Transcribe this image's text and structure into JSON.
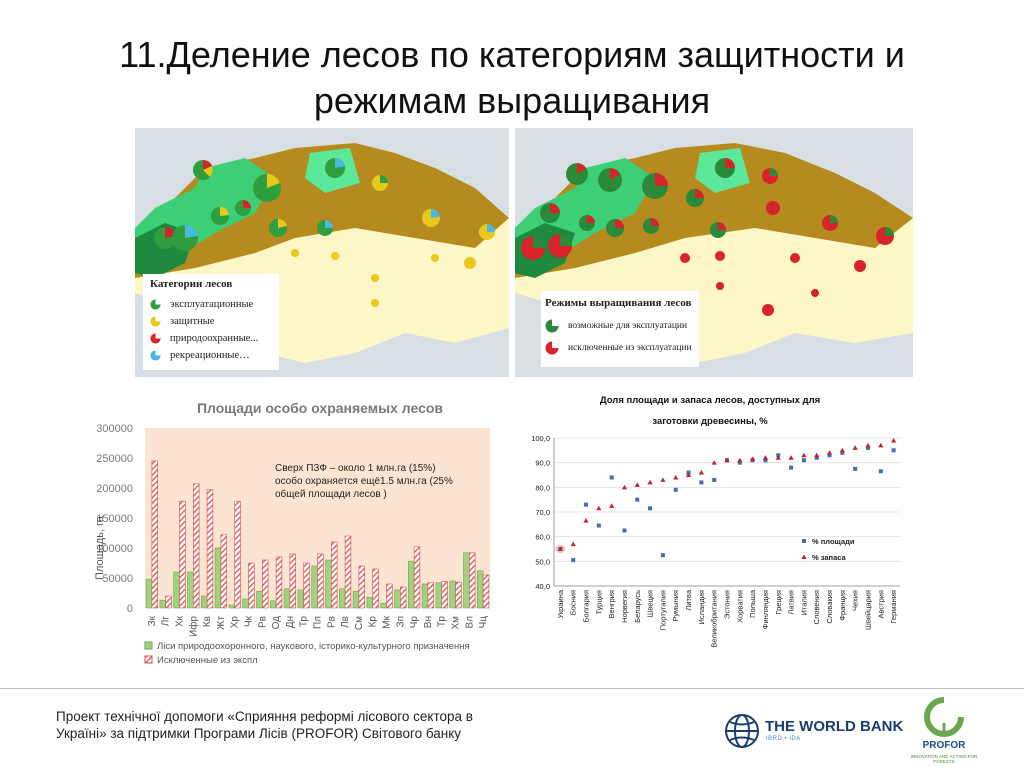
{
  "slide": {
    "title_line1": "11.Деление лесов по категориям защитности и",
    "title_line2": "режимам выращивания"
  },
  "map_left": {
    "legend_title": "Категории лесов",
    "items": [
      {
        "label": "эксплуатационные",
        "color": "#2e9e3e"
      },
      {
        "label": "защитные",
        "color": "#e8c81b"
      },
      {
        "label": "природоохранные...",
        "color": "#d8232a"
      },
      {
        "label": "рекреационные…",
        "color": "#4ab8e0"
      }
    ]
  },
  "map_right": {
    "legend_title": "Режимы  выращивания лесов",
    "items": [
      {
        "label": "возможные для эксплуатации",
        "color": "#2a8a3a"
      },
      {
        "label": "исключенные из эксплуатации",
        "color": "#d8232a"
      }
    ]
  },
  "chart_data": [
    {
      "type": "bar",
      "title": "Площади особо охраняемых лесов",
      "ylabel": "Площадь, га",
      "ylim": [
        0,
        300000
      ],
      "yticks": [
        "0",
        "50000",
        "100000",
        "150000",
        "200000",
        "250000",
        "300000"
      ],
      "categories": [
        "Зк",
        "Лг",
        "Хк",
        "Ифр",
        "Кв",
        "Жт",
        "Хр",
        "Чк",
        "Рв",
        "Од",
        "Дн",
        "Тр",
        "Пл",
        "Рв",
        "Лв",
        "См",
        "Кр",
        "Мк",
        "Зп",
        "Чр",
        "Вн",
        "Тр",
        "Хм",
        "Вл",
        "Чц"
      ],
      "series": [
        {
          "name": "Ліси природоохоронного, наукового, історико-культурного призначення",
          "color": "#9fd37f",
          "values": [
            48000,
            13000,
            60000,
            60000,
            20000,
            100000,
            5000,
            15000,
            28000,
            12000,
            32000,
            30000,
            70000,
            80000,
            32000,
            28000,
            18000,
            8000,
            30000,
            78000,
            40000,
            42000,
            45000,
            92000,
            62000
          ]
        },
        {
          "name": "Исключенные из экспл",
          "color": "#d94c4c",
          "values": [
            245000,
            20000,
            178000,
            207000,
            197000,
            122000,
            178000,
            75000,
            80000,
            85000,
            90000,
            75000,
            90000,
            110000,
            120000,
            70000,
            65000,
            40000,
            35000,
            102000,
            42000,
            44000,
            43000,
            92000,
            55000
          ]
        }
      ],
      "annotation": "Сверх ПЗФ – около 1 млн.га  (15%) особо охраняется ещё1.5 млн.га (25% общей площади лесов )"
    },
    {
      "type": "scatter",
      "title": "Доля площади и запаса лесов, доступных для заготовки древесины, %",
      "ylim": [
        40,
        100
      ],
      "yticks": [
        "40,0",
        "50,0",
        "60,0",
        "70,0",
        "80,0",
        "90,0",
        "100,0"
      ],
      "categories": [
        "Украина",
        "Босния",
        "Болгария",
        "Турция",
        "Венгрия",
        "Норвегия",
        "Беларусь",
        "Швеция",
        "Португалия",
        "Румыния",
        "Литва",
        "Исландия",
        "Великобритания",
        "Эстония",
        "Хорватия",
        "Польша",
        "Финляндия",
        "Греция",
        "Латвия",
        "Италия",
        "Словения",
        "Словакия",
        "Франция",
        "Чехия",
        "Швейцария",
        "Австрия",
        "Германия"
      ],
      "series": [
        {
          "name": "% площади",
          "color": "#3b6fb6",
          "values": [
            55,
            50.5,
            73,
            64.5,
            84,
            62.5,
            75,
            71.5,
            52.5,
            79,
            86,
            82,
            83,
            91,
            90,
            91,
            91,
            93,
            88,
            91,
            92,
            93,
            94,
            87.5,
            96,
            86.5,
            95
          ]
        },
        {
          "name": "% запаса",
          "color": "#c0262b",
          "values": [
            55,
            57,
            66.5,
            71.5,
            72.5,
            80,
            81,
            82,
            83,
            84,
            85,
            86,
            90,
            91,
            91,
            91.5,
            92,
            92,
            92,
            93,
            93,
            94,
            95,
            96,
            97,
            97,
            99
          ]
        }
      ]
    }
  ],
  "footer": {
    "text": "Проект технічної допомоги «Сприяння реформі лісового сектора в Україні» за підтримки Програми Лісів (PROFOR) Світового банку",
    "wb_name": "THE WORLD BANK",
    "wb_sub": "IBRD • IDA",
    "profor_name": "PROFOR",
    "profor_sub": "INNOVATION AND ACTION FOR FORESTS"
  }
}
